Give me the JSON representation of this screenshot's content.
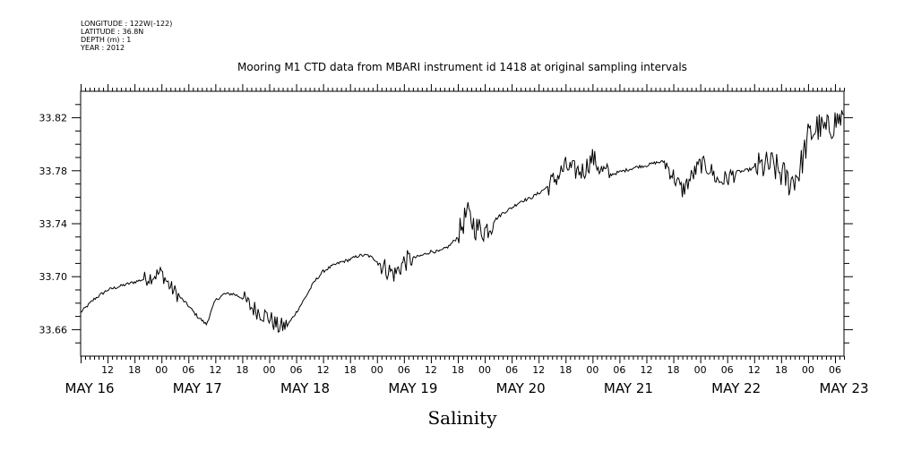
{
  "meta_lines": [
    "LONGITUDE : 122W(-122)",
    "LATITUDE : 36.8N",
    "DEPTH (m) : 1",
    "YEAR : 2012"
  ],
  "chart_data": {
    "type": "line",
    "title": "Mooring M1 CTD data from MBARI instrument id 1418 at original sampling intervals",
    "xlabel": "Salinity",
    "ylabel": "",
    "x_range": [
      "MAY 16 06:00",
      "MAY 23 08:00"
    ],
    "ylim": [
      33.64,
      33.84
    ],
    "y_ticks": [
      "33.66",
      "33.70",
      "33.74",
      "33.78",
      "33.82"
    ],
    "x_hour_labels": [
      "12",
      "18",
      "00",
      "06",
      "12",
      "18",
      "00",
      "06",
      "12",
      "18",
      "00",
      "06",
      "12",
      "18",
      "00",
      "06",
      "12",
      "18",
      "00",
      "06",
      "12",
      "18",
      "00",
      "06",
      "12",
      "18",
      "00",
      "06"
    ],
    "x_day_labels": [
      "MAY 16",
      "MAY 17",
      "MAY 18",
      "MAY 19",
      "MAY 20",
      "MAY 21",
      "MAY 22",
      "MAY 23"
    ],
    "grid": false,
    "series": [
      {
        "x_hours_since_may16_06": [
          0,
          3,
          6,
          10,
          14,
          18,
          20,
          22,
          24,
          26,
          28,
          30,
          32,
          34,
          36,
          38,
          42,
          44,
          46,
          48,
          50,
          52,
          54,
          56,
          58,
          60,
          62,
          64,
          66,
          68,
          70,
          72,
          74,
          76,
          78,
          80,
          82,
          84,
          86,
          88,
          90,
          92,
          94,
          96,
          98,
          100,
          102,
          104,
          106,
          108,
          110,
          112,
          114,
          116,
          118,
          120,
          122,
          124,
          126,
          128,
          130,
          132,
          134,
          136,
          138,
          140,
          142,
          144,
          146,
          148,
          150,
          152,
          154,
          156,
          158,
          160,
          162,
          164,
          166,
          168,
          170
        ],
        "values": [
          33.673,
          33.683,
          33.69,
          33.694,
          33.698,
          33.703,
          33.692,
          33.685,
          33.678,
          33.67,
          33.664,
          33.682,
          33.687,
          33.687,
          33.684,
          33.677,
          33.669,
          33.662,
          33.663,
          33.673,
          33.684,
          33.696,
          33.704,
          33.708,
          33.711,
          33.713,
          33.716,
          33.716,
          33.712,
          33.706,
          33.702,
          33.711,
          33.714,
          33.716,
          33.719,
          33.719,
          33.723,
          33.73,
          33.748,
          33.737,
          33.735,
          33.742,
          33.748,
          33.752,
          33.757,
          33.759,
          33.763,
          33.768,
          33.775,
          33.783,
          33.78,
          33.78,
          33.79,
          33.78,
          33.777,
          33.779,
          33.781,
          33.783,
          33.784,
          33.786,
          33.787,
          33.776,
          33.765,
          33.775,
          33.785,
          33.782,
          33.772,
          33.774,
          33.779,
          33.78,
          33.782,
          33.783,
          33.784,
          33.778,
          33.771,
          33.779,
          33.805,
          33.813,
          33.81,
          33.817,
          33.821
        ]
      }
    ]
  }
}
